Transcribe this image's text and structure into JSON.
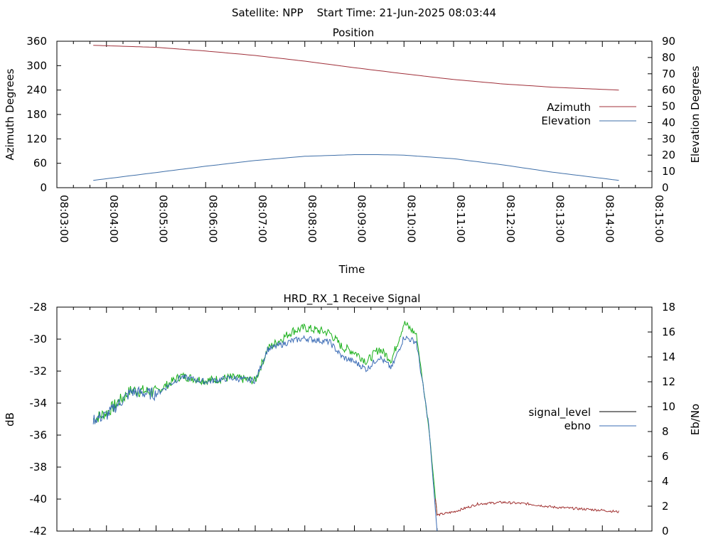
{
  "page": {
    "header": "Satellite: NPP    Start Time: 21-Jun-2025 08:03:44"
  },
  "colors": {
    "azimuth": "#a0303a",
    "elevation": "#3f6fa8",
    "ebno": "#3a6bb5",
    "signal_green": "#19b019",
    "signal_low": "#a03030",
    "legend_signal": "#000000",
    "frame": "#000000"
  },
  "chart_data": [
    {
      "type": "line",
      "title": "Position",
      "xlabel": "Time",
      "ylabel": "Azimuth Degrees",
      "y2label": "Elevation Degrees",
      "xlim": [
        "08:03:00",
        "08:15:00"
      ],
      "ylim": [
        0,
        360
      ],
      "y2lim": [
        0,
        90
      ],
      "x_ticks": [
        "08:03:00",
        "08:04:00",
        "08:05:00",
        "08:06:00",
        "08:07:00",
        "08:08:00",
        "08:09:00",
        "08:10:00",
        "08:11:00",
        "08:12:00",
        "08:13:00",
        "08:14:00",
        "08:15:00"
      ],
      "y_ticks": [
        "0",
        "60",
        "120",
        "180",
        "240",
        "300",
        "360"
      ],
      "y2_ticks": [
        "0",
        "10",
        "20",
        "30",
        "40",
        "50",
        "60",
        "70",
        "80",
        "90"
      ],
      "legend_position": "right-middle",
      "series": [
        {
          "name": "Azimuth",
          "axis": "left",
          "x": [
            "08:03:44",
            "08:05:00",
            "08:06:00",
            "08:07:00",
            "08:08:00",
            "08:09:00",
            "08:10:00",
            "08:11:00",
            "08:12:00",
            "08:13:00",
            "08:14:20"
          ],
          "values": [
            350,
            345,
            336,
            325,
            311,
            295,
            280,
            266,
            255,
            247,
            240
          ]
        },
        {
          "name": "Elevation",
          "axis": "right",
          "x": [
            "08:03:44",
            "08:05:00",
            "08:06:00",
            "08:07:00",
            "08:08:00",
            "08:09:00",
            "08:09:30",
            "08:10:00",
            "08:11:00",
            "08:12:00",
            "08:13:00",
            "08:14:20"
          ],
          "values": [
            4.5,
            9.3,
            13.2,
            16.7,
            19.3,
            20.3,
            20.3,
            20.0,
            17.8,
            14.0,
            9.5,
            4.5
          ]
        }
      ]
    },
    {
      "type": "line",
      "title": "HRD_RX_1 Receive Signal",
      "ylabel": "dB",
      "y2label": "Eb/No",
      "xlim": [
        "08:03:00",
        "08:15:00"
      ],
      "ylim": [
        -42,
        -28
      ],
      "y2lim": [
        0,
        18
      ],
      "y_ticks": [
        "-42",
        "-40",
        "-38",
        "-36",
        "-34",
        "-32",
        "-30",
        "-28"
      ],
      "y2_ticks": [
        "0",
        "2",
        "4",
        "6",
        "8",
        "10",
        "12",
        "14",
        "16",
        "18"
      ],
      "legend_position": "right-middle",
      "series": [
        {
          "name": "signal_level",
          "axis": "left",
          "x": [
            "08:03:44",
            "08:04:00",
            "08:04:30",
            "08:05:00",
            "08:05:30",
            "08:06:00",
            "08:06:30",
            "08:07:00",
            "08:07:15",
            "08:07:45",
            "08:08:00",
            "08:08:30",
            "08:08:45",
            "08:09:00",
            "08:09:15",
            "08:09:30",
            "08:09:45",
            "08:10:00",
            "08:10:15",
            "08:10:30",
            "08:10:40",
            "08:11:00",
            "08:11:30",
            "08:12:00",
            "08:12:30",
            "08:13:00",
            "08:13:30",
            "08:14:00",
            "08:14:20"
          ],
          "values": [
            -35.0,
            -34.6,
            -33.2,
            -33.3,
            -32.3,
            -32.6,
            -32.4,
            -32.6,
            -30.6,
            -29.5,
            -29.3,
            -29.6,
            -30.5,
            -30.8,
            -31.4,
            -30.6,
            -31.3,
            -29.0,
            -29.7,
            -35.5,
            -41.0,
            -40.8,
            -40.3,
            -40.2,
            -40.3,
            -40.5,
            -40.6,
            -40.7,
            -40.8
          ]
        },
        {
          "name": "ebno",
          "axis": "right",
          "x": [
            "08:03:44",
            "08:04:00",
            "08:04:30",
            "08:05:00",
            "08:05:30",
            "08:06:00",
            "08:06:30",
            "08:07:00",
            "08:07:15",
            "08:07:45",
            "08:08:00",
            "08:08:30",
            "08:08:45",
            "08:09:00",
            "08:09:15",
            "08:09:30",
            "08:09:45",
            "08:10:00",
            "08:10:15",
            "08:10:30",
            "08:10:40"
          ],
          "values": [
            9.0,
            9.3,
            11.2,
            11.0,
            12.4,
            12.0,
            12.3,
            12.1,
            14.6,
            15.3,
            15.5,
            15.2,
            14.0,
            13.6,
            13.0,
            14.0,
            13.1,
            15.6,
            15.2,
            8.5,
            0
          ]
        }
      ]
    }
  ]
}
